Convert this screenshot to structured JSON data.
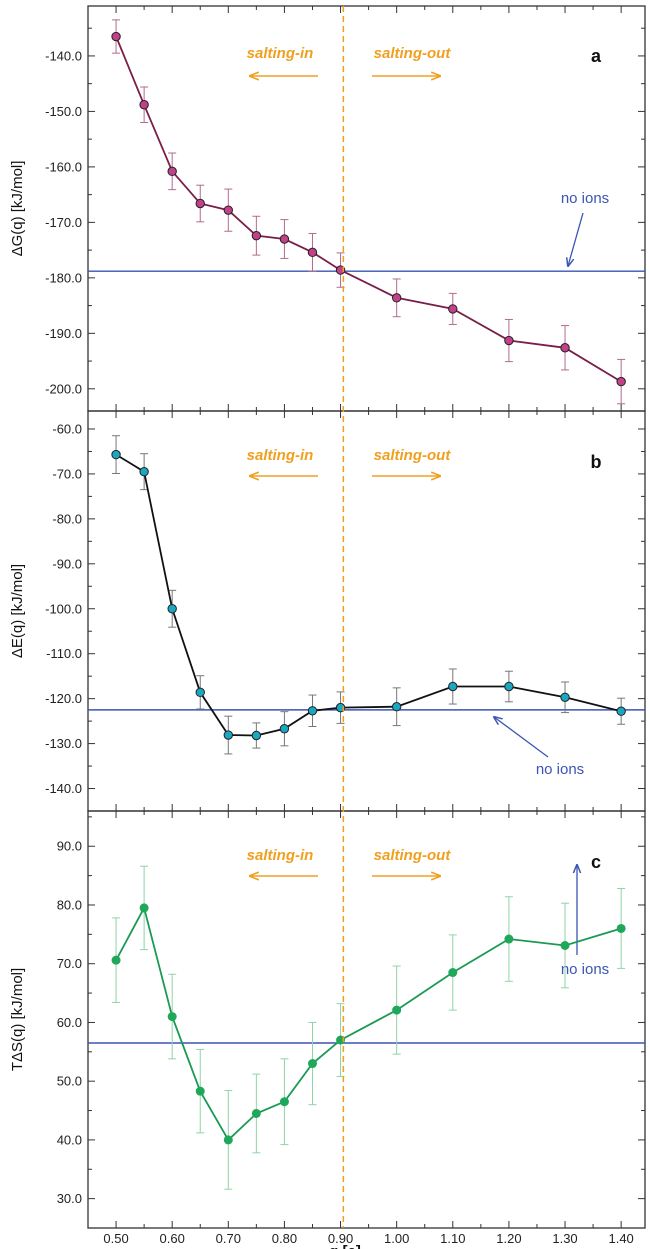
{
  "chart_data": [
    {
      "panel": "a",
      "type": "line",
      "ylabel": "ΔG(q) [kJ/mol]",
      "ylim": [
        -204,
        -131
      ],
      "yticks": [
        -140,
        -150,
        -160,
        -170,
        -180,
        -190,
        -200
      ],
      "ytick_labels": [
        "-140.0",
        "-150.0",
        "-160.0",
        "-170.0",
        "-180.0",
        "-190.0",
        "-200.0"
      ],
      "x": [
        0.5,
        0.55,
        0.6,
        0.65,
        0.7,
        0.75,
        0.8,
        0.85,
        0.9,
        1.0,
        1.1,
        1.2,
        1.3,
        1.4
      ],
      "values": [
        -136.5,
        -148.8,
        -160.8,
        -166.6,
        -167.8,
        -172.4,
        -173.0,
        -175.4,
        -178.6,
        -183.6,
        -185.6,
        -191.3,
        -192.6,
        -198.7
      ],
      "errors": [
        3.0,
        3.2,
        3.3,
        3.3,
        3.8,
        3.5,
        3.5,
        3.4,
        3.1,
        3.4,
        2.8,
        3.8,
        4.0,
        4.0
      ],
      "reference": {
        "value": -178.8,
        "label": "no ions"
      },
      "colors": {
        "line": "#7a1e4a",
        "marker": "#c2418a",
        "error": "#b36a8e"
      },
      "salting_in": "salting-in",
      "salting_out": "salting-out"
    },
    {
      "panel": "b",
      "type": "line",
      "ylabel": "ΔE(q) [kJ/mol]",
      "ylim": [
        -145,
        -56
      ],
      "yticks": [
        -60,
        -70,
        -80,
        -90,
        -100,
        -110,
        -120,
        -130,
        -140
      ],
      "ytick_labels": [
        "-60.0",
        "-70.0",
        "-80.0",
        "-90.0",
        "-100.0",
        "-110.0",
        "-120.0",
        "-130.0",
        "-140.0"
      ],
      "x": [
        0.5,
        0.55,
        0.6,
        0.65,
        0.7,
        0.75,
        0.8,
        0.85,
        0.9,
        1.0,
        1.1,
        1.2,
        1.3,
        1.4
      ],
      "values": [
        -65.7,
        -69.5,
        -100.0,
        -118.6,
        -128.1,
        -128.2,
        -126.7,
        -122.7,
        -122.0,
        -121.8,
        -117.3,
        -117.3,
        -119.7,
        -122.8
      ],
      "errors": [
        4.2,
        4.0,
        4.1,
        3.7,
        4.2,
        2.8,
        3.8,
        3.5,
        3.5,
        4.2,
        3.9,
        3.4,
        3.4,
        2.9
      ],
      "reference": {
        "value": -122.5,
        "label": "no ions"
      },
      "colors": {
        "line": "#111111",
        "marker": "#1aa7c2",
        "error": "#777777"
      },
      "salting_in": "salting-in",
      "salting_out": "salting-out"
    },
    {
      "panel": "c",
      "type": "line",
      "xlabel": "q [e]",
      "ylabel": "TΔS(q) [kJ/mol]",
      "ylim": [
        25,
        96
      ],
      "yticks": [
        30,
        40,
        50,
        60,
        70,
        80,
        90
      ],
      "ytick_labels": [
        "30.0",
        "40.0",
        "50.0",
        "60.0",
        "70.0",
        "80.0",
        "90.0"
      ],
      "x": [
        0.5,
        0.55,
        0.6,
        0.65,
        0.7,
        0.75,
        0.8,
        0.85,
        0.9,
        1.0,
        1.1,
        1.2,
        1.3,
        1.4
      ],
      "values": [
        70.6,
        79.5,
        61.0,
        48.3,
        40.0,
        44.5,
        46.5,
        53.0,
        57.0,
        62.1,
        68.5,
        74.2,
        73.1,
        76.0
      ],
      "errors": [
        7.2,
        7.1,
        7.2,
        7.1,
        8.4,
        6.7,
        7.3,
        7.0,
        6.2,
        7.5,
        6.4,
        7.2,
        7.2,
        6.8
      ],
      "reference": {
        "value": 56.5,
        "label": "no ions"
      },
      "colors": {
        "line": "#1a9a52",
        "marker": "#1fa85a",
        "error": "#8fd4a8"
      },
      "salting_in": "salting-in",
      "salting_out": "salting-out"
    }
  ],
  "xaxis": {
    "xlim": [
      0.45,
      1.4425
    ],
    "ticks": [
      0.5,
      0.6,
      0.7,
      0.8,
      0.9,
      1.0,
      1.1,
      1.2,
      1.3,
      1.4
    ],
    "tick_labels": [
      "0.50",
      "0.60",
      "0.70",
      "0.80",
      "0.90",
      "1.00",
      "1.10",
      "1.20",
      "1.30",
      "1.40"
    ],
    "minor_step": 0.05,
    "divider_x": 0.905
  },
  "colors": {
    "reference_line": "#3a55b5",
    "divider": "#f0a020",
    "salting_text": "#f0a020"
  }
}
